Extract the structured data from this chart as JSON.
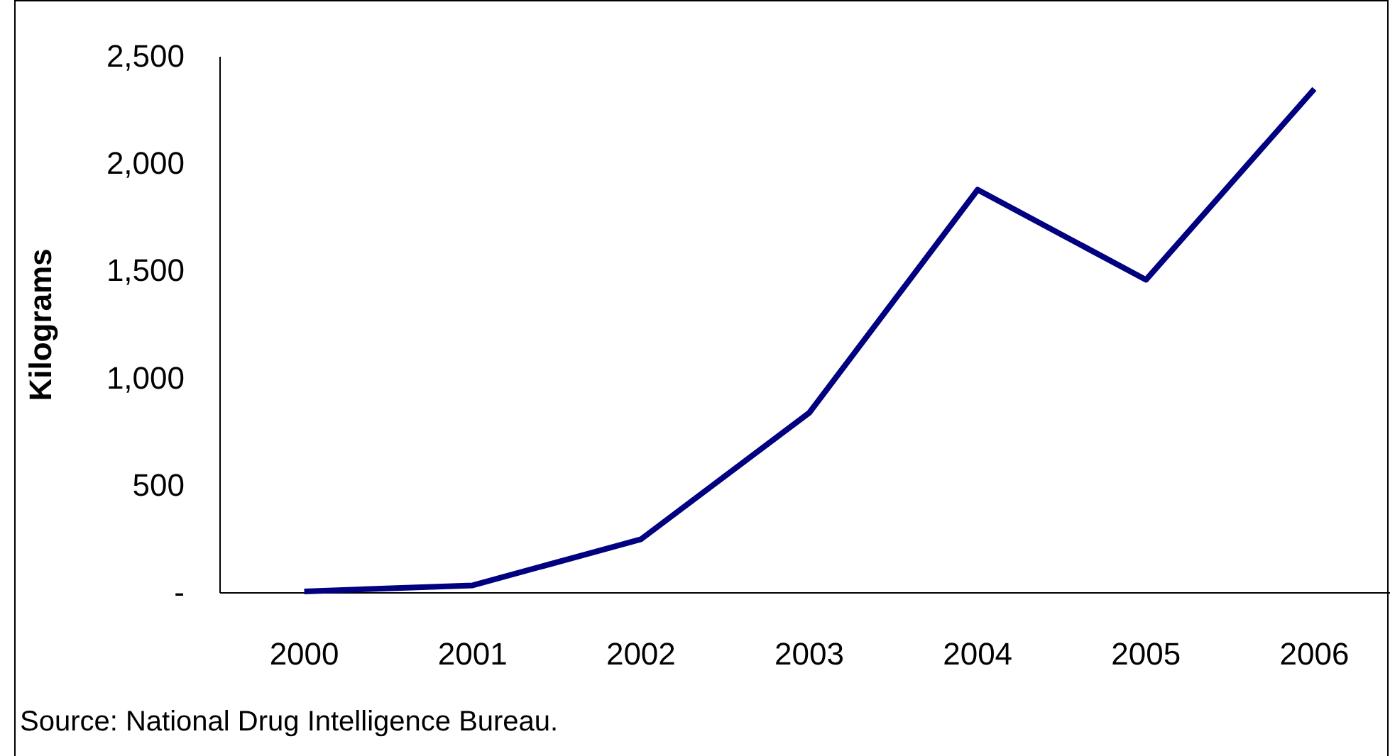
{
  "chart_data": {
    "type": "line",
    "ylabel": "Kilograms",
    "categories": [
      "2000",
      "2001",
      "2002",
      "2003",
      "2004",
      "2005",
      "2006"
    ],
    "series": [
      {
        "color": "#000080",
        "values": [
          7,
          35,
          250,
          840,
          1880,
          1460,
          2350
        ]
      }
    ],
    "ylim": [
      0,
      2500
    ],
    "yticks": [
      {
        "value": 0,
        "label": "-"
      },
      {
        "value": 500,
        "label": "500"
      },
      {
        "value": 1000,
        "label": "1,000"
      },
      {
        "value": 1500,
        "label": "1,500"
      },
      {
        "value": 2000,
        "label": "2,000"
      },
      {
        "value": 2500,
        "label": "2,500"
      }
    ],
    "grid": false,
    "marker": "none",
    "line_style": "solid",
    "annotations": [
      "Source: National Drug Intelligence Bureau."
    ]
  }
}
